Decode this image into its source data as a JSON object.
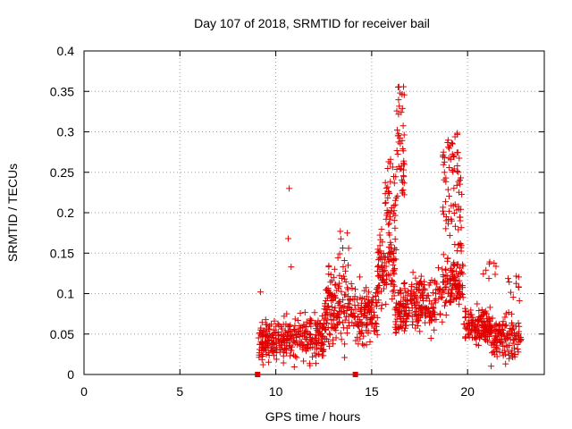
{
  "chart_data": {
    "type": "scatter",
    "title": "Day 107 of 2018, SRMTID for receiver bail",
    "xlabel": "GPS time / hours",
    "ylabel": "SRMTID / TECUs",
    "xlim": [
      0,
      24
    ],
    "ylim": [
      0,
      0.4
    ],
    "x_ticks": [
      "0",
      "5",
      "10",
      "15",
      "20"
    ],
    "y_ticks": [
      "0",
      "0.05",
      "0.1",
      "0.15",
      "0.2",
      "0.25",
      "0.3",
      "0.35",
      "0.4"
    ],
    "grid": true,
    "marker": "+",
    "color": "#e00000",
    "square_markers": [
      [
        9.05,
        0.0
      ],
      [
        14.15,
        0.0
      ]
    ],
    "segments": [
      {
        "x_start": 9.1,
        "x_end": 10.5,
        "base": 0.04,
        "spread": 0.035,
        "count": 140
      },
      {
        "x_start": 10.5,
        "x_end": 12.5,
        "base": 0.045,
        "spread": 0.04,
        "count": 170
      },
      {
        "x_start": 12.5,
        "x_end": 14.0,
        "base": 0.08,
        "spread": 0.06,
        "count": 150
      },
      {
        "x_start": 14.0,
        "x_end": 15.3,
        "base": 0.075,
        "spread": 0.045,
        "count": 120
      },
      {
        "x_start": 15.3,
        "x_end": 16.2,
        "base": 0.13,
        "spread": 0.06,
        "count": 90
      },
      {
        "x_start": 16.2,
        "x_end": 17.0,
        "base": 0.08,
        "spread": 0.04,
        "count": 80
      },
      {
        "x_start": 17.0,
        "x_end": 18.6,
        "base": 0.09,
        "spread": 0.045,
        "count": 140
      },
      {
        "x_start": 18.6,
        "x_end": 19.8,
        "base": 0.11,
        "spread": 0.05,
        "count": 110
      },
      {
        "x_start": 19.8,
        "x_end": 21.2,
        "base": 0.06,
        "spread": 0.03,
        "count": 130
      },
      {
        "x_start": 21.2,
        "x_end": 22.8,
        "base": 0.045,
        "spread": 0.035,
        "count": 130
      }
    ],
    "peaks": [
      {
        "x_start": 15.7,
        "x_end": 16.3,
        "y_low": 0.14,
        "y_high": 0.27,
        "count": 50
      },
      {
        "x_start": 16.3,
        "x_end": 16.7,
        "y_low": 0.22,
        "y_high": 0.36,
        "count": 45
      },
      {
        "x_start": 18.7,
        "x_end": 19.2,
        "y_low": 0.17,
        "y_high": 0.29,
        "count": 35
      },
      {
        "x_start": 19.2,
        "x_end": 19.7,
        "y_low": 0.15,
        "y_high": 0.3,
        "count": 45
      },
      {
        "x_start": 13.2,
        "x_end": 14.0,
        "y_low": 0.12,
        "y_high": 0.18,
        "count": 12
      },
      {
        "x_start": 20.7,
        "x_end": 21.5,
        "y_low": 0.1,
        "y_high": 0.15,
        "count": 8
      },
      {
        "x_start": 22.1,
        "x_end": 22.8,
        "y_low": 0.09,
        "y_high": 0.13,
        "count": 10
      }
    ],
    "outliers": [
      [
        10.7,
        0.23
      ],
      [
        10.65,
        0.168
      ],
      [
        9.2,
        0.102
      ],
      [
        10.8,
        0.133
      ]
    ]
  }
}
